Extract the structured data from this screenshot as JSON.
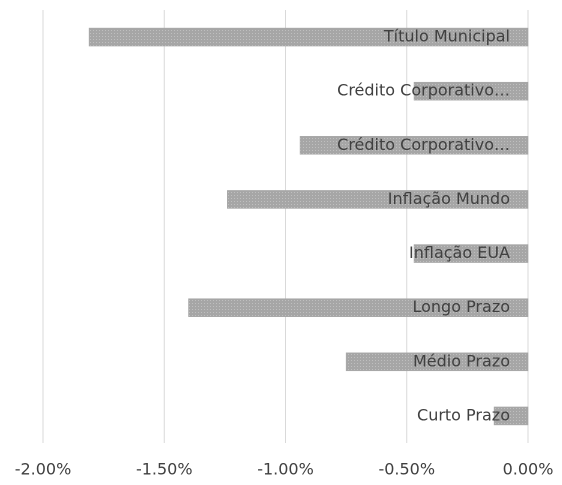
{
  "chart_data": {
    "type": "barh",
    "categories": [
      "Título Municipal",
      "Crédito Corporativo…",
      "Crédito Corporativo…",
      "Inflação Mundo",
      "Inflação EUA",
      "Longo Prazo",
      "Médio Prazo",
      "Curto Prazo"
    ],
    "values": [
      -1.81,
      -0.47,
      -0.94,
      -1.24,
      -0.47,
      -1.4,
      -0.75,
      -0.14
    ],
    "color": "#a6a6a6",
    "xlim": [
      -2,
      0
    ],
    "xticks": [
      {
        "value": -2,
        "label": "-2.00%"
      },
      {
        "value": -1.5,
        "label": "-1.50%"
      },
      {
        "value": -1,
        "label": "-1.00%"
      },
      {
        "value": -0.5,
        "label": "-0.50%"
      },
      {
        "value": 0,
        "label": "0.00%"
      }
    ],
    "grid": true
  }
}
